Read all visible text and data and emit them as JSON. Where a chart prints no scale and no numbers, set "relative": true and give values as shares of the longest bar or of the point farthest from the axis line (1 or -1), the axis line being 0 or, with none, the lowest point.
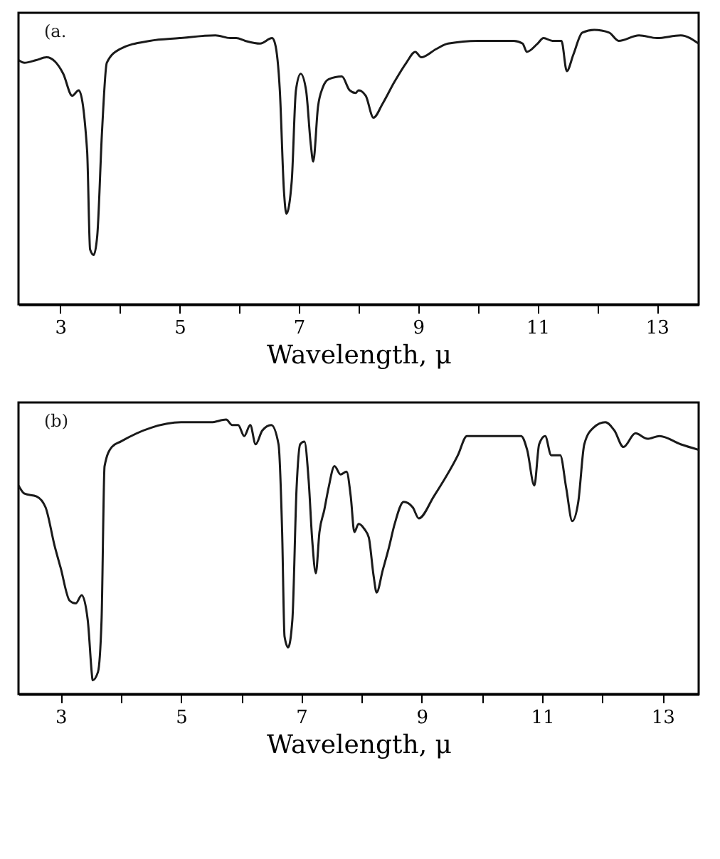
{
  "chart_data": [
    {
      "type": "line",
      "relative": true,
      "xlabel": "Wavelength, μ",
      "annotations": [
        "(a."
      ],
      "xlim": [
        2.3,
        13.7
      ],
      "xticks": [
        3,
        {
          "value": 4,
          "label": null
        },
        5,
        {
          "value": 6,
          "label": null
        },
        7,
        {
          "value": 8,
          "label": null
        },
        9,
        {
          "value": 10,
          "label": null
        },
        11,
        {
          "value": 12,
          "label": null
        },
        13
      ],
      "grid": false,
      "marker": "none",
      "line_style": "solid",
      "tick_labels": "x",
      "series": [
        {
          "color": "#1a1a1a",
          "x": [
            2.3,
            2.4,
            2.6,
            2.77,
            3.05,
            3.2,
            3.31,
            3.45,
            3.5,
            3.56,
            3.62,
            3.7,
            3.78,
            4.0,
            4.5,
            5.0,
            5.6,
            5.85,
            5.95,
            6.1,
            6.35,
            6.55,
            6.6,
            6.68,
            6.75,
            6.79,
            6.88,
            6.95,
            7.03,
            7.12,
            7.2,
            7.24,
            7.32,
            7.4,
            7.5,
            7.72,
            7.85,
            7.95,
            8.0,
            8.12,
            8.25,
            8.4,
            8.6,
            8.8,
            8.95,
            9.05,
            9.3,
            9.5,
            10.0,
            10.6,
            10.75,
            10.82,
            11.0,
            11.1,
            11.25,
            11.4,
            11.49,
            11.6,
            11.75,
            11.95,
            12.2,
            12.36,
            12.7,
            13.0,
            13.4,
            13.7
          ],
          "values": [
            0.89,
            0.88,
            0.89,
            0.9,
            0.84,
            0.76,
            0.78,
            0.56,
            0.2,
            0.18,
            0.25,
            0.63,
            0.88,
            0.93,
            0.96,
            0.97,
            0.98,
            0.97,
            0.97,
            0.96,
            0.95,
            0.97,
            0.95,
            0.78,
            0.41,
            0.33,
            0.45,
            0.78,
            0.84,
            0.78,
            0.58,
            0.52,
            0.72,
            0.79,
            0.82,
            0.83,
            0.78,
            0.77,
            0.78,
            0.76,
            0.68,
            0.73,
            0.81,
            0.88,
            0.92,
            0.9,
            0.93,
            0.95,
            0.96,
            0.96,
            0.95,
            0.92,
            0.95,
            0.97,
            0.96,
            0.96,
            0.85,
            0.91,
            0.99,
            1.0,
            0.99,
            0.96,
            0.98,
            0.97,
            0.98,
            0.95
          ]
        }
      ]
    },
    {
      "type": "line",
      "relative": true,
      "xlabel": "Wavelength, μ",
      "annotations": [
        "(b)"
      ],
      "xlim": [
        2.3,
        13.6
      ],
      "xticks": [
        3,
        {
          "value": 4,
          "label": null
        },
        5,
        {
          "value": 6,
          "label": null
        },
        7,
        {
          "value": 8,
          "label": null
        },
        9,
        {
          "value": 10,
          "label": null
        },
        11,
        {
          "value": 12,
          "label": null
        },
        13
      ],
      "grid": false,
      "marker": "none",
      "line_style": "solid",
      "tick_labels": "x",
      "series": [
        {
          "color": "#1a1a1a",
          "x": [
            2.3,
            2.4,
            2.6,
            2.75,
            2.9,
            3.0,
            3.15,
            3.25,
            3.35,
            3.45,
            3.52,
            3.53,
            3.62,
            3.68,
            3.73,
            3.85,
            4.0,
            4.5,
            5.0,
            5.5,
            5.75,
            5.85,
            5.95,
            6.05,
            6.15,
            6.24,
            6.35,
            6.5,
            6.62,
            6.68,
            6.72,
            6.78,
            6.85,
            6.92,
            6.98,
            7.05,
            7.12,
            7.18,
            7.24,
            7.3,
            7.38,
            7.45,
            7.55,
            7.65,
            7.75,
            7.82,
            7.88,
            7.95,
            8.05,
            8.12,
            8.2,
            8.25,
            8.35,
            8.45,
            8.55,
            8.7,
            8.85,
            8.95,
            9.2,
            9.6,
            9.75,
            10.2,
            10.65,
            10.75,
            10.87,
            10.95,
            11.05,
            11.15,
            11.3,
            11.4,
            11.5,
            11.6,
            11.7,
            11.85,
            12.05,
            12.2,
            12.35,
            12.55,
            12.75,
            12.95,
            13.3,
            13.6
          ],
          "values": [
            0.76,
            0.73,
            0.72,
            0.68,
            0.54,
            0.46,
            0.34,
            0.33,
            0.36,
            0.27,
            0.07,
            0.05,
            0.08,
            0.27,
            0.83,
            0.9,
            0.92,
            0.97,
            0.99,
            0.99,
            1.0,
            0.98,
            0.98,
            0.94,
            0.98,
            0.91,
            0.96,
            0.98,
            0.91,
            0.59,
            0.21,
            0.17,
            0.27,
            0.75,
            0.91,
            0.92,
            0.78,
            0.56,
            0.44,
            0.59,
            0.67,
            0.75,
            0.83,
            0.8,
            0.81,
            0.72,
            0.59,
            0.62,
            0.6,
            0.57,
            0.43,
            0.37,
            0.45,
            0.53,
            0.62,
            0.7,
            0.68,
            0.64,
            0.72,
            0.87,
            0.94,
            0.94,
            0.94,
            0.89,
            0.76,
            0.91,
            0.94,
            0.87,
            0.87,
            0.75,
            0.63,
            0.7,
            0.91,
            0.97,
            0.99,
            0.96,
            0.9,
            0.95,
            0.93,
            0.94,
            0.91,
            0.89
          ]
        }
      ]
    }
  ]
}
